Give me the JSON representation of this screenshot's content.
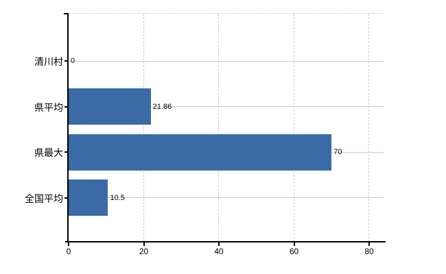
{
  "chart_data": {
    "type": "bar",
    "orientation": "horizontal",
    "title": "",
    "categories": [
      "清川村",
      "県平均",
      "県最大",
      "全国平均"
    ],
    "values": [
      0,
      21.86,
      70,
      10.5
    ],
    "value_labels": [
      "0",
      "21.86",
      "70",
      "10.5"
    ],
    "xtick_labels": [
      "0",
      "20",
      "40",
      "60",
      "80"
    ],
    "xtick_values": [
      0,
      20,
      40,
      60,
      80
    ],
    "xlim": [
      0,
      84
    ],
    "grid": true,
    "legend": null,
    "colors": {
      "bar": "#3a6ba6",
      "axis": "#000000",
      "grid_horizontal": "#c9d1c9",
      "grid_vertical": "#d0ccd0",
      "text": "#000000",
      "background": "#ffffff"
    }
  }
}
